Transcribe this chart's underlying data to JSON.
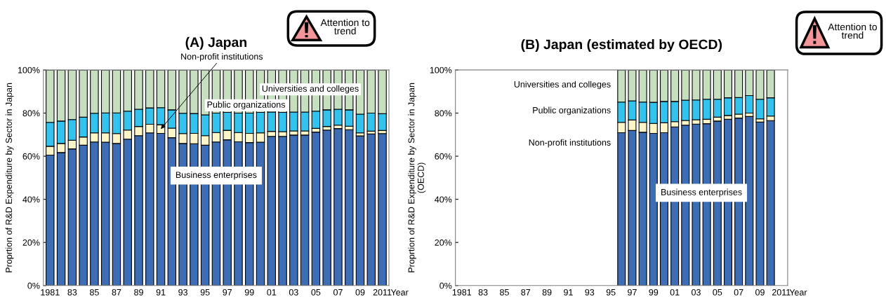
{
  "chart_data": [
    {
      "type": "bar",
      "stacked": true,
      "title": "(A) Japan",
      "xlabel": "Year",
      "ylabel": "Proprtion of R&D Expenditure by Sector in Japan",
      "categories": [
        "1981",
        null,
        "83",
        null,
        "85",
        null,
        "87",
        null,
        "89",
        null,
        "91",
        null,
        "93",
        null,
        "95",
        null,
        "97",
        null,
        "99",
        null,
        "01",
        null,
        "03",
        null,
        "05",
        null,
        "07",
        null,
        "09",
        null,
        "2011"
      ],
      "series": [
        {
          "name": "Business enterprises",
          "color": "#3d6db5",
          "values": [
            60.5,
            61.7,
            63.4,
            65.1,
            66.6,
            66.5,
            65.9,
            67.9,
            69.5,
            70.8,
            70.6,
            68.6,
            65.9,
            65.8,
            65.1,
            66.6,
            67.6,
            66.7,
            66.3,
            66.5,
            69.2,
            69.2,
            69.8,
            69.8,
            71.2,
            72.1,
            72.8,
            72.3,
            69.4,
            70.3,
            70.5
          ]
        },
        {
          "name": "Non-profit institutions",
          "color": "#fbf5c8",
          "values": [
            4.1,
            4.2,
            4.0,
            3.8,
            4.2,
            4.3,
            4.6,
            4.2,
            4.3,
            4.0,
            4.0,
            4.4,
            4.6,
            4.8,
            4.4,
            4.4,
            4.4,
            4.3,
            4.3,
            4.3,
            2.3,
            2.2,
            1.9,
            1.9,
            1.7,
            1.7,
            1.6,
            1.6,
            1.4,
            1.3,
            1.4
          ]
        },
        {
          "name": "Public organizations",
          "color": "#33c3ee",
          "values": [
            11.1,
            10.4,
            9.6,
            9.2,
            9.1,
            9.3,
            9.6,
            8.8,
            8.0,
            7.6,
            7.9,
            8.5,
            9.4,
            9.2,
            9.7,
            9.0,
            8.3,
            9.0,
            9.4,
            9.5,
            9.0,
            8.9,
            8.8,
            8.8,
            8.0,
            7.7,
            7.4,
            7.6,
            8.7,
            8.4,
            7.8
          ]
        },
        {
          "name": "Universities and colleges",
          "color": "#c6e0bf",
          "values": [
            24.3,
            23.7,
            23.0,
            21.9,
            20.1,
            19.9,
            19.9,
            19.1,
            18.2,
            17.6,
            17.5,
            18.5,
            20.1,
            20.2,
            20.8,
            20.0,
            19.7,
            20.0,
            20.0,
            19.7,
            19.5,
            19.7,
            19.5,
            19.5,
            19.1,
            18.5,
            18.2,
            18.5,
            20.5,
            20.0,
            20.3
          ]
        }
      ],
      "ylim": [
        0,
        100
      ],
      "yticks": [
        {
          "value": 0,
          "label": "0%"
        },
        {
          "value": 20,
          "label": "20%"
        },
        {
          "value": 40,
          "label": "40%"
        },
        {
          "value": 60,
          "label": "60%"
        },
        {
          "value": 80,
          "label": "80%"
        },
        {
          "value": 100,
          "label": "100%"
        }
      ],
      "grid": false,
      "legend": false,
      "annotations": [
        "Attention to\ntrend"
      ]
    },
    {
      "type": "bar",
      "stacked": true,
      "title": "(B) Japan (estimated by OECD)",
      "xlabel": "Year",
      "ylabel": "Proprtion of R&D Expenditure by Sector in Japan\n(OECD)",
      "categories": [
        "1981",
        null,
        "83",
        null,
        "85",
        null,
        "87",
        null,
        "89",
        null,
        "91",
        null,
        "93",
        null,
        "95",
        null,
        "97",
        null,
        "99",
        null,
        "01",
        null,
        "03",
        null,
        "05",
        null,
        "07",
        null,
        "09",
        null,
        "2011"
      ],
      "series": [
        {
          "name": "Business enterprises",
          "color": "#3d6db5",
          "values": [
            null,
            null,
            null,
            null,
            null,
            null,
            null,
            null,
            null,
            null,
            null,
            null,
            null,
            null,
            null,
            70.9,
            71.9,
            71.1,
            70.6,
            70.9,
            73.6,
            74.4,
            74.9,
            75.1,
            76.3,
            77.1,
            77.7,
            78.4,
            75.8,
            76.5,
            null
          ]
        },
        {
          "name": "Non-profit institutions",
          "color": "#fbf5c8",
          "values": [
            null,
            null,
            null,
            null,
            null,
            null,
            null,
            null,
            null,
            null,
            null,
            null,
            null,
            null,
            null,
            4.8,
            4.9,
            4.6,
            4.6,
            4.6,
            2.4,
            2.2,
            2.0,
            2.0,
            1.8,
            1.8,
            1.8,
            1.6,
            1.5,
            2.1,
            null
          ]
        },
        {
          "name": "Public organizations",
          "color": "#33c3ee",
          "values": [
            null,
            null,
            null,
            null,
            null,
            null,
            null,
            null,
            null,
            null,
            null,
            null,
            null,
            null,
            null,
            9.4,
            8.9,
            9.4,
            9.8,
            9.9,
            9.4,
            9.4,
            9.2,
            9.3,
            8.3,
            8.2,
            7.7,
            8.1,
            9.1,
            8.5,
            null
          ]
        },
        {
          "name": "Universities and colleges",
          "color": "#c6e0bf",
          "values": [
            null,
            null,
            null,
            null,
            null,
            null,
            null,
            null,
            null,
            null,
            null,
            null,
            null,
            null,
            null,
            14.9,
            14.3,
            14.9,
            15.0,
            14.6,
            14.6,
            14.0,
            13.9,
            13.6,
            13.6,
            12.9,
            12.8,
            11.9,
            13.6,
            12.9,
            null
          ]
        }
      ],
      "ylim": [
        0,
        100
      ],
      "yticks": [
        {
          "value": 0,
          "label": "0%"
        },
        {
          "value": 20,
          "label": "20%"
        },
        {
          "value": 40,
          "label": "40%"
        },
        {
          "value": 60,
          "label": "60%"
        },
        {
          "value": 80,
          "label": "80%"
        },
        {
          "value": 100,
          "label": "100%"
        }
      ],
      "grid": false,
      "legend": false,
      "annotations": [
        "Attention to\ntrend"
      ]
    }
  ]
}
